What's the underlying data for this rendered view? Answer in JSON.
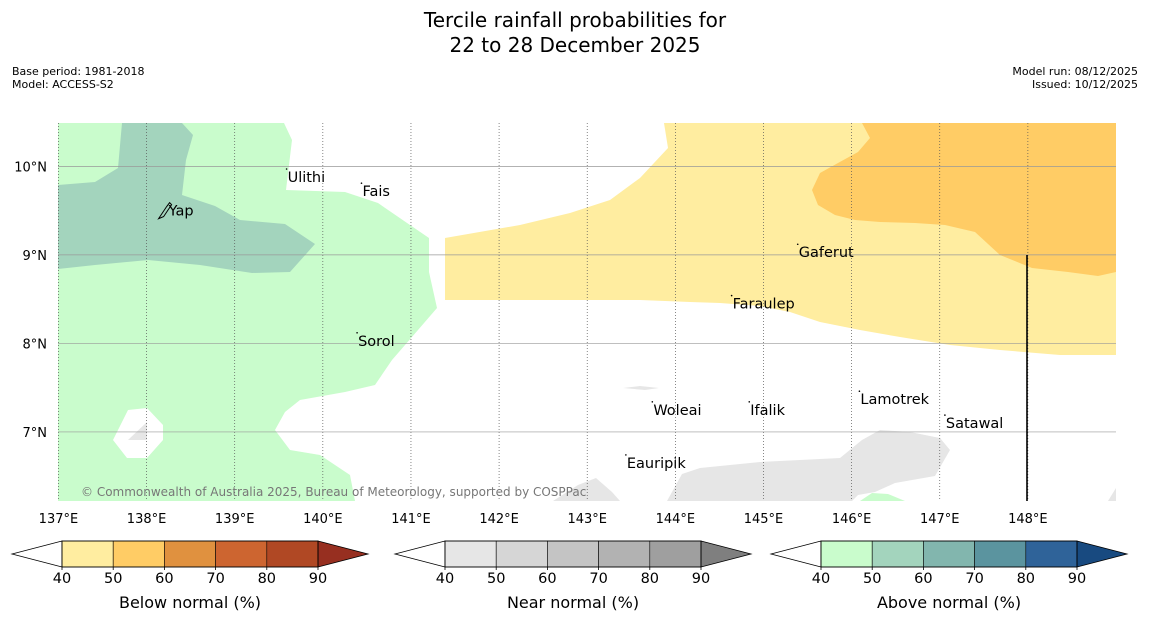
{
  "title": {
    "line1": "Tercile rainfall probabilities for",
    "line2": "22 to 28 December 2025"
  },
  "meta": {
    "base_period": "Base period: 1981-2018",
    "model": "Model: ACCESS-S2",
    "model_run": "Model run: 08/12/2025",
    "issued": "Issued: 10/12/2025"
  },
  "map": {
    "lon_range": [
      136.995,
      149.0
    ],
    "lat_range": [
      6.22,
      10.49
    ],
    "lon_ticks": [
      137,
      138,
      139,
      140,
      141,
      142,
      143,
      144,
      145,
      146,
      147,
      148
    ],
    "lon_labels": [
      "137°E",
      "138°E",
      "139°E",
      "140°E",
      "141°E",
      "142°E",
      "143°E",
      "144°E",
      "145°E",
      "146°E",
      "147°E",
      "148°E"
    ],
    "lat_ticks": [
      10,
      9,
      8,
      7
    ],
    "lat_labels": [
      "10°N",
      "9°N",
      "8°N",
      "7°N"
    ],
    "copyright": "© Commonwealth of Australia 2025, Bureau of Meteorology, supported by COSPPac",
    "places": [
      {
        "name": "Yap",
        "lon": 138.25,
        "lat": 9.5
      },
      {
        "name": "Ulithi",
        "lon": 139.6,
        "lat": 9.88
      },
      {
        "name": "Fais",
        "lon": 140.45,
        "lat": 9.72
      },
      {
        "name": "Sorol",
        "lon": 140.4,
        "lat": 8.03
      },
      {
        "name": "Gaferut",
        "lon": 145.4,
        "lat": 9.03
      },
      {
        "name": "Faraulep",
        "lon": 144.65,
        "lat": 8.45
      },
      {
        "name": "Woleai",
        "lon": 143.75,
        "lat": 7.25
      },
      {
        "name": "Ifalik",
        "lon": 144.85,
        "lat": 7.25
      },
      {
        "name": "Lamotrek",
        "lon": 146.1,
        "lat": 7.37
      },
      {
        "name": "Satawal",
        "lon": 147.07,
        "lat": 7.1
      },
      {
        "name": "Eauripik",
        "lon": 143.45,
        "lat": 6.65
      }
    ],
    "region_colors": {
      "above_40": "#c9fccc",
      "above_50": "#a3d4bd",
      "below_40": "#ffeda0",
      "below_50": "#ffcc65",
      "near_40": "#e6e6e6"
    }
  },
  "colorbars": [
    {
      "label": "Below normal (%)",
      "colors": [
        "#ffeda0",
        "#ffcc65",
        "#e0913f",
        "#cd6530",
        "#b04824",
        "#972f20"
      ],
      "ticks": [
        "40",
        "50",
        "60",
        "70",
        "80",
        "90"
      ]
    },
    {
      "label": "Near normal (%)",
      "colors": [
        "#e6e6e6",
        "#d6d6d6",
        "#c4c4c4",
        "#b2b2b2",
        "#9f9f9f",
        "#7f7f7f"
      ],
      "ticks": [
        "40",
        "50",
        "60",
        "70",
        "80",
        "90"
      ]
    },
    {
      "label": "Above normal (%)",
      "colors": [
        "#c9fccc",
        "#a3d4bd",
        "#82b6ae",
        "#5b949f",
        "#2f6399",
        "#184a80"
      ],
      "ticks": [
        "40",
        "50",
        "60",
        "70",
        "80",
        "90"
      ]
    }
  ]
}
